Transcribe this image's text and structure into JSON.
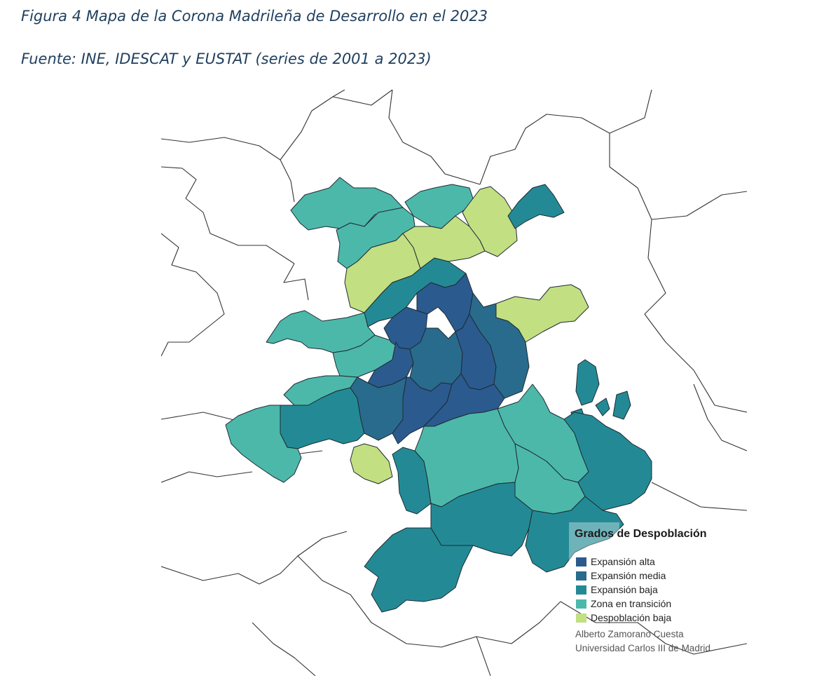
{
  "caption": {
    "title": "Figura 4 Mapa de la Corona Madrileña de Desarrollo en el 2023",
    "source": "Fuente: INE, IDESCAT y EUSTAT (series de 2001 a 2023)"
  },
  "legend": {
    "title": "Grados de Despoblación",
    "items": [
      {
        "label": "Expansión alta",
        "color": "#2b5a8e"
      },
      {
        "label": "Expansión media",
        "color": "#296b8c"
      },
      {
        "label": "Expansión baja",
        "color": "#238a95"
      },
      {
        "label": "Zona en transición",
        "color": "#4cb8aa"
      },
      {
        "label": "Despoblación baja",
        "color": "#c2df82"
      }
    ]
  },
  "credits": {
    "author": "Alberto Zamorano Cuesta",
    "institution": "Universidad Carlos III de Madrid"
  }
}
